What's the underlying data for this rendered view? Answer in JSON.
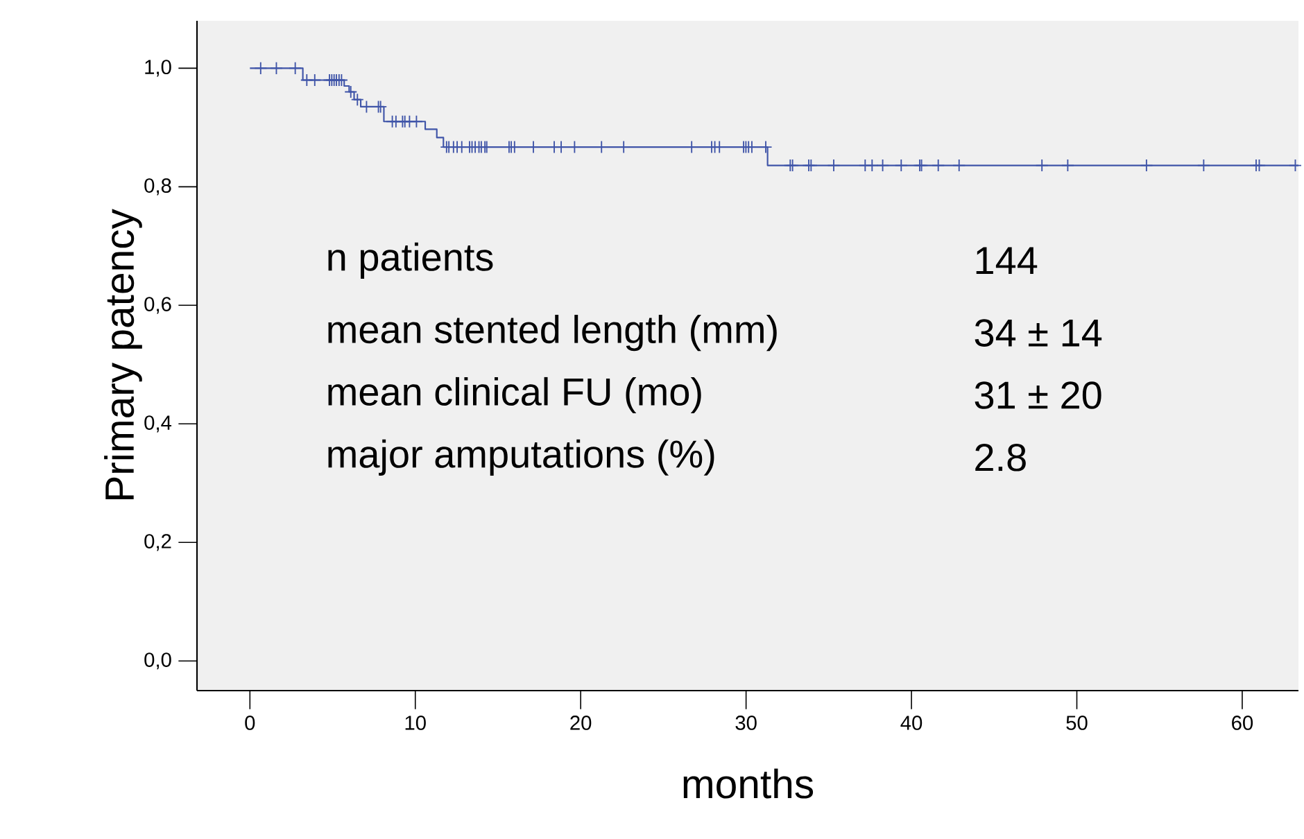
{
  "chart_data": {
    "type": "step",
    "xlabel": "months",
    "ylabel": "Primary patency",
    "xlim": [
      -3.2,
      63.4
    ],
    "ylim": [
      -0.05,
      1.08
    ],
    "xticks": [
      0,
      10,
      20,
      30,
      40,
      50,
      60
    ],
    "yticks": [
      {
        "value": 0,
        "label": "0,0"
      },
      {
        "value": 0.2,
        "label": "0,2"
      },
      {
        "value": 0.4,
        "label": "0,4"
      },
      {
        "value": 0.6,
        "label": "0,6"
      },
      {
        "value": 0.8,
        "label": "0,8"
      },
      {
        "value": 1.0,
        "label": "1,0"
      }
    ],
    "annotations": [
      "n patients",
      "144",
      "mean stented length  (mm)",
      "34 ± 14",
      "mean clinical FU (mo)",
      "31 ± 20",
      "major amputations (%)",
      "2.8"
    ],
    "series": [
      {
        "color": "#3f54a8",
        "x": [
          0,
          3.2,
          5.7,
          6.0,
          6.3,
          6.7,
          8.1,
          10.6,
          11.3,
          11.7,
          31.3,
          63.4
        ],
        "values": [
          1.0,
          0.98,
          0.97,
          0.96,
          0.947,
          0.935,
          0.91,
          0.897,
          0.883,
          0.867,
          0.836,
          0.836
        ]
      },
      {
        "type": "scatter",
        "marker": "cross",
        "color": "#3f54a8",
        "x": [
          0.65,
          1.6,
          2.74,
          3.44,
          3.92,
          4.81,
          4.95,
          5.09,
          5.23,
          5.39,
          5.54,
          6.1,
          6.5,
          7.05,
          7.77,
          7.9,
          8.61,
          8.83,
          9.23,
          9.37,
          9.65,
          10.07,
          11.89,
          12.03,
          12.31,
          12.53,
          12.81,
          13.28,
          13.43,
          13.62,
          13.85,
          13.99,
          14.21,
          14.32,
          15.67,
          15.8,
          16.0,
          17.14,
          18.4,
          18.82,
          19.63,
          21.26,
          22.6,
          26.71,
          27.92,
          28.11,
          28.39,
          29.85,
          29.99,
          30.15,
          30.35,
          31.19,
          32.67,
          32.81,
          33.79,
          33.93,
          35.3,
          37.2,
          37.62,
          38.26,
          39.38,
          40.5,
          40.61,
          41.62,
          42.88,
          47.89,
          49.45,
          54.21,
          57.67,
          60.84,
          61.03,
          63.21
        ],
        "values": [
          1.0,
          1.0,
          1.0,
          0.98,
          0.98,
          0.98,
          0.98,
          0.98,
          0.98,
          0.98,
          0.98,
          0.96,
          0.947,
          0.935,
          0.935,
          0.935,
          0.91,
          0.91,
          0.91,
          0.91,
          0.91,
          0.91,
          0.867,
          0.867,
          0.867,
          0.867,
          0.867,
          0.867,
          0.867,
          0.867,
          0.867,
          0.867,
          0.867,
          0.867,
          0.867,
          0.867,
          0.867,
          0.867,
          0.867,
          0.867,
          0.867,
          0.867,
          0.867,
          0.867,
          0.867,
          0.867,
          0.867,
          0.867,
          0.867,
          0.867,
          0.867,
          0.867,
          0.836,
          0.836,
          0.836,
          0.836,
          0.836,
          0.836,
          0.836,
          0.836,
          0.836,
          0.836,
          0.836,
          0.836,
          0.836,
          0.836,
          0.836,
          0.836,
          0.836,
          0.836,
          0.836,
          0.836
        ]
      }
    ]
  }
}
